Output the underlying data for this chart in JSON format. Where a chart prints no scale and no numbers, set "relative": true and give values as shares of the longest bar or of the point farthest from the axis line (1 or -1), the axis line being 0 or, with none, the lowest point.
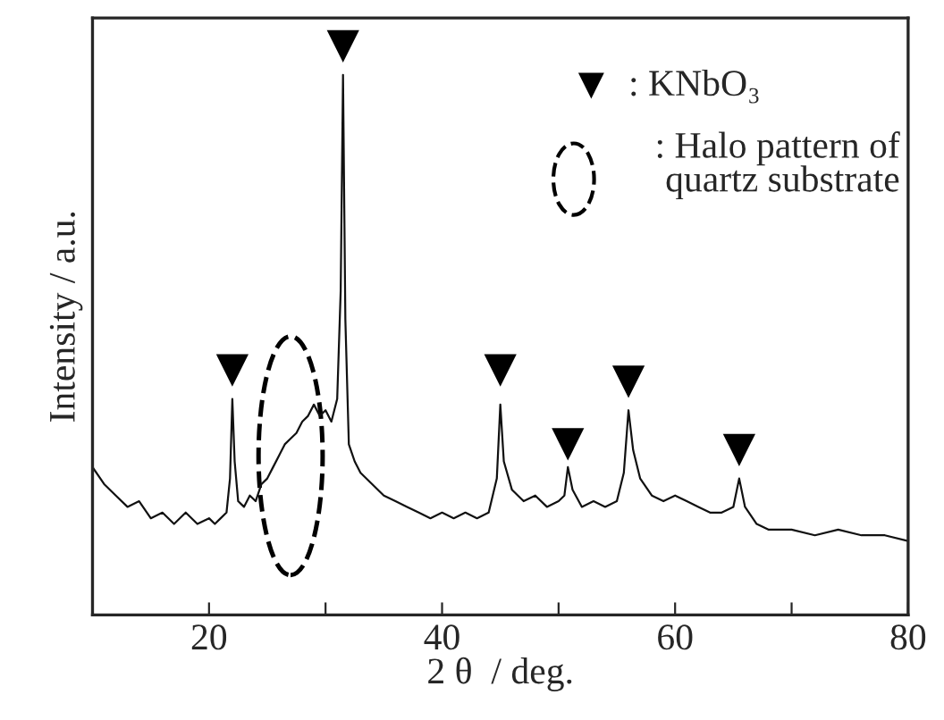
{
  "chart_data": {
    "type": "line",
    "xlabel": "2 θ  / deg.",
    "ylabel": "Intensity / a.u.",
    "relative": true,
    "tick_labels": "x",
    "legend": "top right",
    "xlim": [
      10,
      80
    ],
    "xticks": [
      {
        "value": 10,
        "label": null
      },
      20,
      {
        "value": 30,
        "label": null
      },
      40,
      {
        "value": 50,
        "label": null
      },
      60,
      {
        "value": 70,
        "label": null
      },
      80
    ],
    "annotations": [
      ": Halo pattern of\nquartz substrate"
    ],
    "series": [
      {
        "color": "#111111",
        "x": [
          10,
          11,
          12,
          13,
          14,
          15,
          16,
          17,
          18,
          19,
          20,
          20.5,
          21,
          21.5,
          21.8,
          22,
          22.2,
          22.5,
          23,
          23.5,
          24,
          24.5,
          25,
          25.5,
          26,
          26.5,
          27,
          27.5,
          28,
          28.5,
          29,
          29.5,
          30,
          30.5,
          31,
          31.3,
          31.5,
          31.7,
          32,
          32.5,
          33,
          34,
          35,
          36,
          37,
          38,
          39,
          40,
          41,
          42,
          43,
          44,
          44.7,
          45,
          45.3,
          46,
          47,
          48,
          49,
          50,
          50.5,
          50.8,
          51.2,
          52,
          53,
          54,
          55,
          55.6,
          56,
          56.4,
          57,
          58,
          59,
          60,
          61,
          62,
          63,
          64,
          65,
          65.5,
          66,
          67,
          68,
          70,
          72,
          74,
          76,
          78,
          80
        ],
        "values": [
          0.26,
          0.23,
          0.21,
          0.19,
          0.2,
          0.17,
          0.18,
          0.16,
          0.18,
          0.16,
          0.17,
          0.16,
          0.17,
          0.18,
          0.24,
          0.38,
          0.27,
          0.2,
          0.19,
          0.21,
          0.2,
          0.23,
          0.24,
          0.26,
          0.28,
          0.3,
          0.31,
          0.32,
          0.34,
          0.35,
          0.37,
          0.35,
          0.36,
          0.34,
          0.38,
          0.57,
          0.95,
          0.52,
          0.3,
          0.27,
          0.25,
          0.23,
          0.21,
          0.2,
          0.19,
          0.18,
          0.17,
          0.18,
          0.17,
          0.18,
          0.17,
          0.18,
          0.24,
          0.37,
          0.27,
          0.22,
          0.2,
          0.21,
          0.19,
          0.2,
          0.21,
          0.26,
          0.22,
          0.19,
          0.2,
          0.19,
          0.2,
          0.25,
          0.36,
          0.29,
          0.24,
          0.21,
          0.2,
          0.21,
          0.2,
          0.19,
          0.18,
          0.18,
          0.19,
          0.24,
          0.19,
          0.16,
          0.15,
          0.15,
          0.14,
          0.15,
          0.14,
          0.14,
          0.13
        ]
      },
      {
        "type": "scatter",
        "name": ": KNbO₃",
        "marker": "triangle",
        "color": "#000000",
        "x": [
          22,
          31.5,
          45,
          50.8,
          56,
          65.5
        ],
        "values": [
          0.43,
          1.0,
          0.43,
          0.3,
          0.41,
          0.29
        ]
      }
    ]
  }
}
